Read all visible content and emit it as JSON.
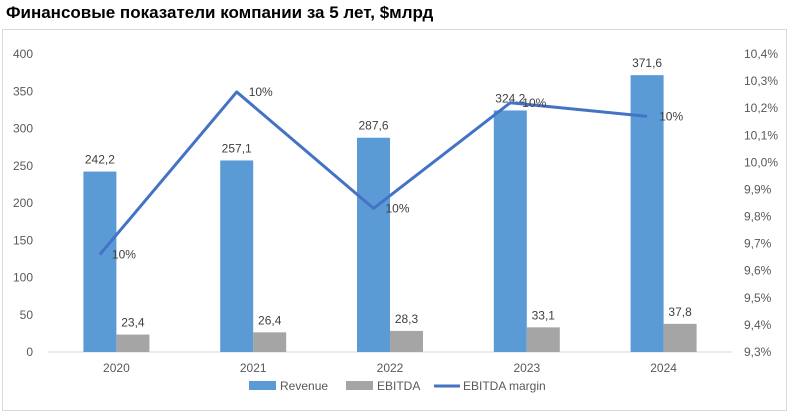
{
  "title": "Финансовые показатели компании за 5 лет, $млрд",
  "chart_data": {
    "type": "bar",
    "categories": [
      "2020",
      "2021",
      "2022",
      "2023",
      "2024"
    ],
    "series": [
      {
        "name": "Revenue",
        "kind": "bar",
        "axis": "left",
        "color": "#5b9bd5",
        "values": [
          242.2,
          257.1,
          287.6,
          324.2,
          371.6
        ],
        "labels": [
          "242,2",
          "257,1",
          "287,6",
          "324,2",
          "371,6"
        ]
      },
      {
        "name": "EBITDA",
        "kind": "bar",
        "axis": "left",
        "color": "#a5a5a5",
        "values": [
          23.4,
          26.4,
          28.3,
          33.1,
          37.8
        ],
        "labels": [
          "23,4",
          "26,4",
          "28,3",
          "33,1",
          "37,8"
        ]
      },
      {
        "name": "EBITDA margin",
        "kind": "line",
        "axis": "right",
        "color": "#4472c4",
        "values": [
          9.66,
          10.26,
          9.83,
          10.22,
          10.17
        ],
        "labels": [
          "10%",
          "10%",
          "10%",
          "10%",
          "10%"
        ]
      }
    ],
    "y_left": {
      "min": 0,
      "max": 400,
      "ticks": [
        0,
        50,
        100,
        150,
        200,
        250,
        300,
        350,
        400
      ],
      "tick_labels": [
        "0",
        "50",
        "100",
        "150",
        "200",
        "250",
        "300",
        "350",
        "400"
      ]
    },
    "y_right": {
      "min": 9.3,
      "max": 10.4,
      "ticks": [
        9.3,
        9.4,
        9.5,
        9.6,
        9.7,
        9.8,
        9.9,
        10.0,
        10.1,
        10.2,
        10.3,
        10.4
      ],
      "tick_labels": [
        "9,3%",
        "9,4%",
        "9,5%",
        "9,6%",
        "9,7%",
        "9,8%",
        "9,9%",
        "10,0%",
        "10,1%",
        "10,2%",
        "10,3%",
        "10,4%"
      ]
    },
    "grid": false,
    "legend_position": "bottom"
  }
}
